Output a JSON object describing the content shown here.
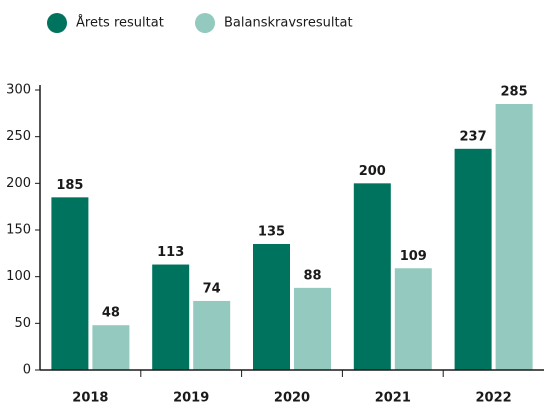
{
  "chart_data": {
    "type": "bar",
    "categories": [
      "2018",
      "2019",
      "2020",
      "2021",
      "2022"
    ],
    "series": [
      {
        "name": "Årets resultat",
        "color": "#00735f",
        "values": [
          185,
          113,
          135,
          200,
          237
        ]
      },
      {
        "name": "Balanskravsresultat",
        "color": "#93c9bf",
        "values": [
          48,
          74,
          88,
          109,
          285
        ]
      }
    ],
    "ylim": [
      0,
      300
    ],
    "yticks": [
      0,
      50,
      100,
      150,
      200,
      250,
      300
    ],
    "legend": "top-left"
  }
}
